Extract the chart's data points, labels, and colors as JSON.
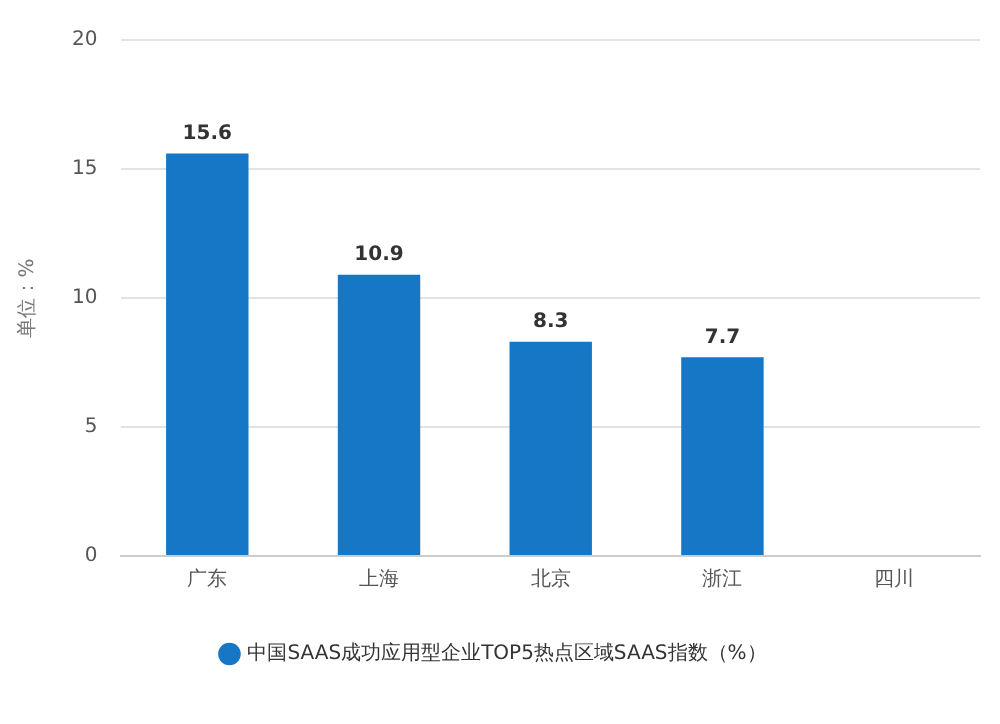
{
  "chart_data": {
    "type": "bar",
    "ylabel": "单位：%",
    "categories": [
      "广东",
      "上海",
      "北京",
      "浙江",
      "四川"
    ],
    "series": [
      {
        "name": "中国SAAS成功应用型企业TOP5热点区域SAAS指数（%）",
        "color": "#1577c5",
        "values": [
          15.6,
          10.9,
          8.3,
          7.7,
          null
        ]
      }
    ],
    "ylim": [
      0,
      20
    ],
    "yticks": [
      0,
      5,
      10,
      15,
      20
    ],
    "grid": "y",
    "legend": "bottom",
    "data_labels": true
  }
}
